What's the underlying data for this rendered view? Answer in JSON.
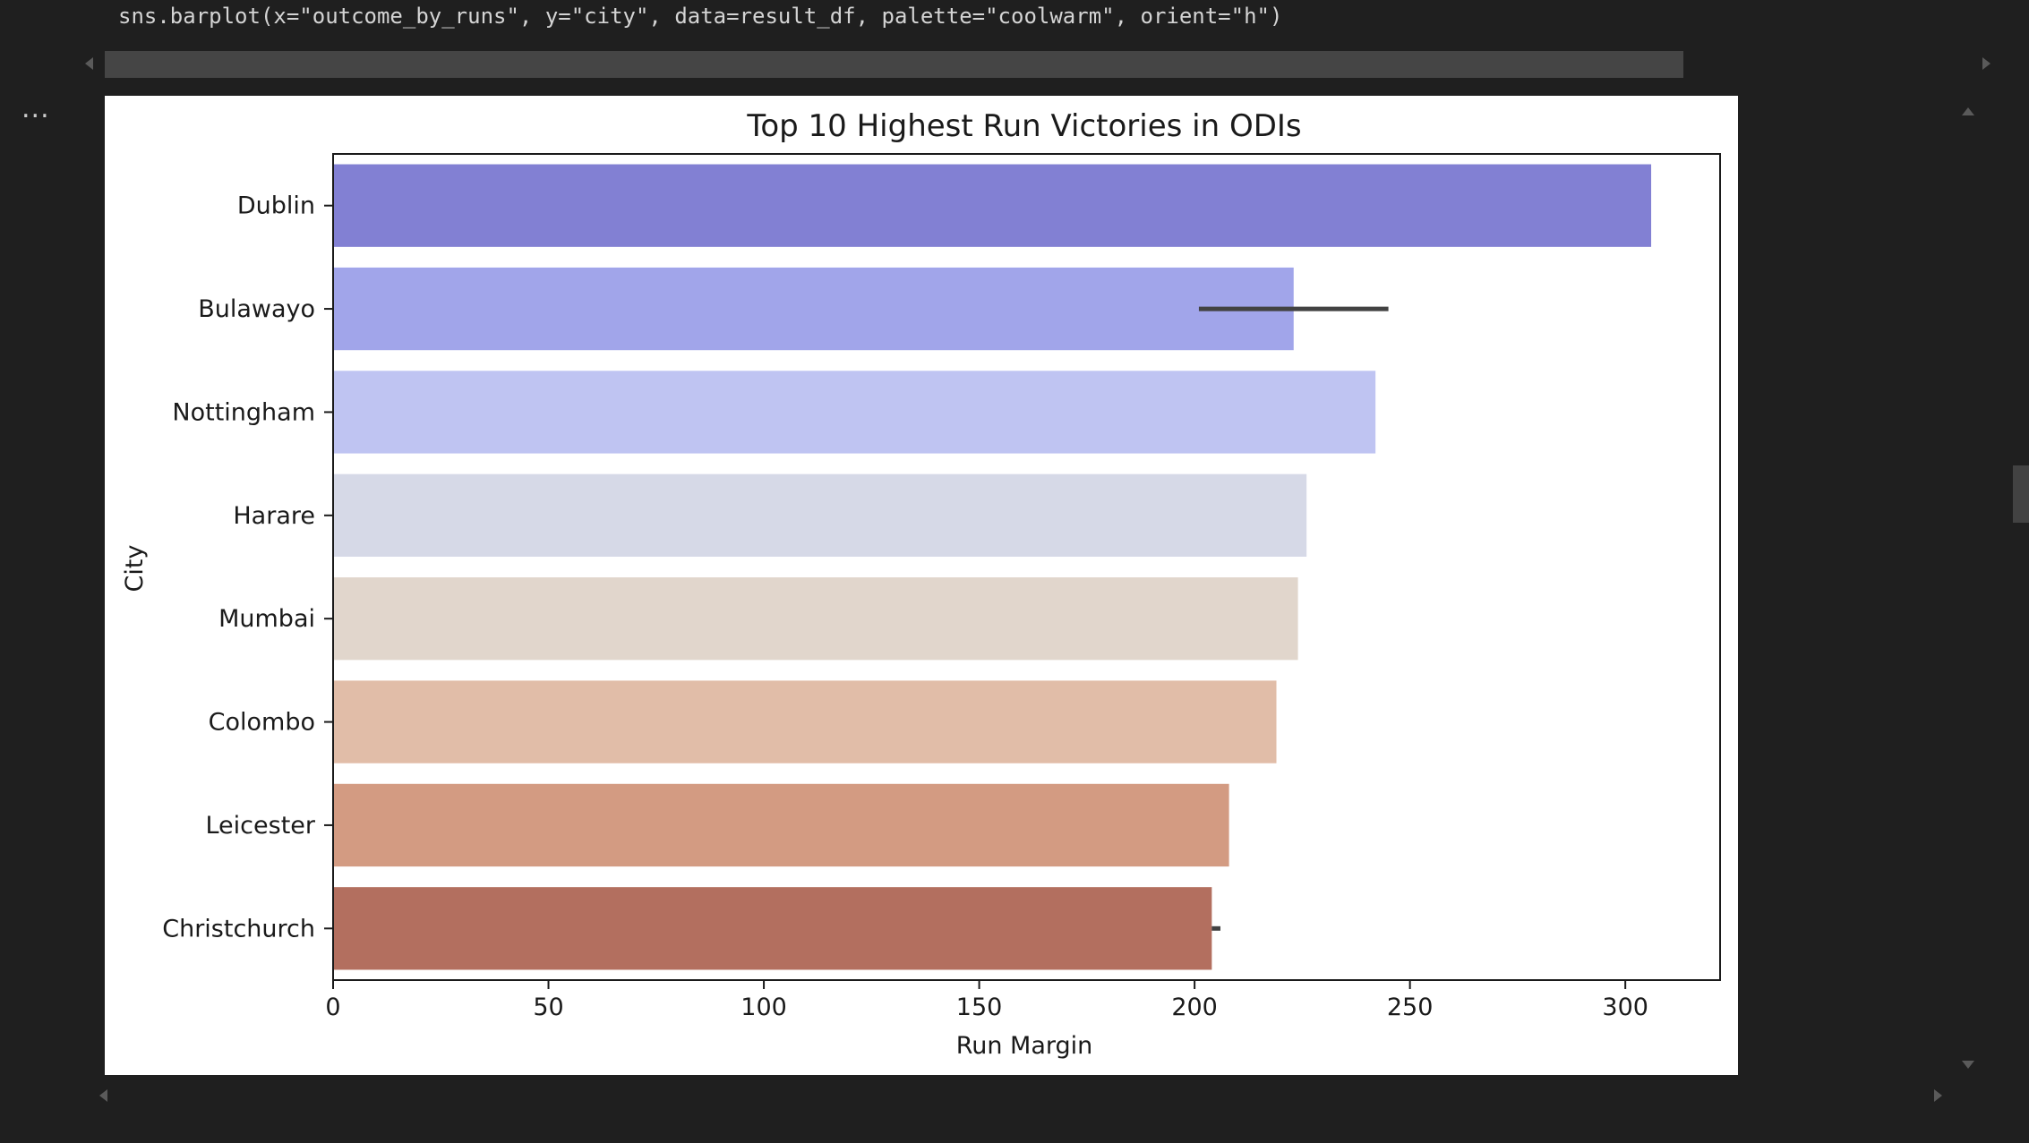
{
  "cell": {
    "code": "sns.barplot(x=\"outcome_by_runs\", y=\"city\", data=result_df, palette=\"coolwarm\", orient=\"h\")",
    "output_toggle_label": "..."
  },
  "chart_data": {
    "type": "bar",
    "orientation": "horizontal",
    "title": "Top 10 Highest Run Victories in ODIs",
    "xlabel": "Run Margin",
    "ylabel": "City",
    "xlim": [
      0,
      322
    ],
    "xticks": [
      0,
      50,
      100,
      150,
      200,
      250,
      300
    ],
    "grid": false,
    "categories": [
      "Dublin",
      "Bulawayo",
      "Nottingham",
      "Harare",
      "Mumbai",
      "Colombo",
      "Leicester",
      "Christchurch"
    ],
    "values": [
      306,
      223,
      242,
      226,
      224,
      219,
      208,
      204
    ],
    "error_bars": [
      null,
      [
        201,
        245
      ],
      null,
      null,
      null,
      null,
      null,
      [
        204,
        206
      ]
    ],
    "colors": [
      "#8280d3",
      "#a1a5ea",
      "#bfc4f2",
      "#d6d9e7",
      "#e1d6cc",
      "#e1bda8",
      "#d39b82",
      "#b36f5f"
    ]
  }
}
